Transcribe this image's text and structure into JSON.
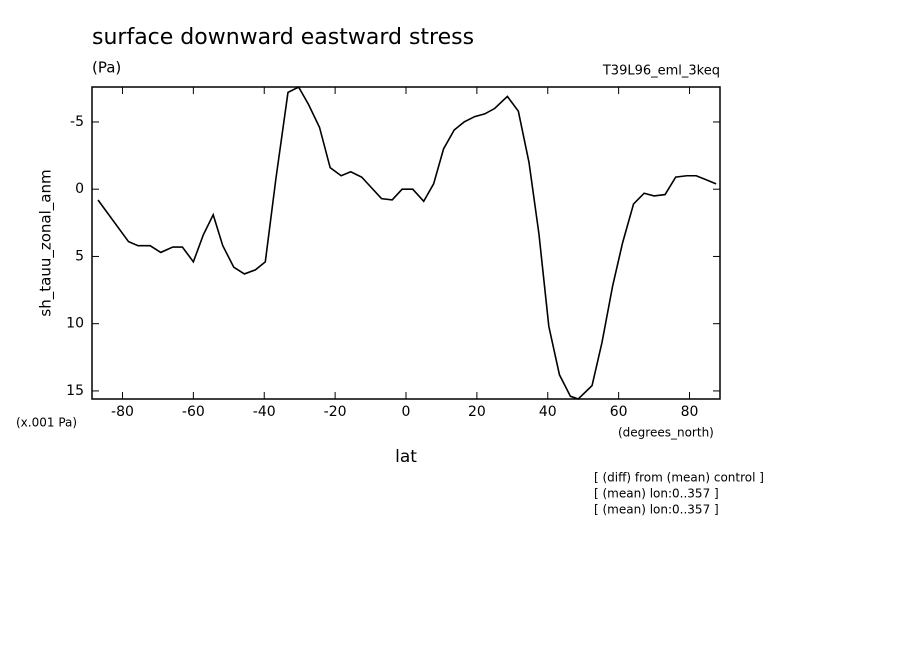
{
  "chart_data": {
    "type": "line",
    "title": "surface downward eastward stress",
    "subtitle": "(Pa)",
    "experiment": "T39L96_eml_3keq",
    "y_label": "sh_tauu_zonal_anm",
    "y_unit": "(x.001 Pa)",
    "x_unit": "(degrees_north)",
    "x_label": "lat",
    "notes": [
      "[ (diff) from (mean) control ]",
      "[ (mean) lon:0..357 ]",
      "[ (mean) lon:0..357 ]"
    ],
    "x": [
      -86.9,
      -78.3,
      -75.6,
      -72.2,
      -69.2,
      -65.8,
      -63.1,
      -60.0,
      -57.2,
      -54.4,
      -51.7,
      -48.6,
      -45.6,
      -42.5,
      -39.7,
      -36.7,
      -33.3,
      -30.3,
      -27.5,
      -24.4,
      -21.4,
      -18.3,
      -15.6,
      -12.5,
      -9.7,
      -6.9,
      -3.9,
      -1.1,
      1.9,
      5.0,
      7.8,
      10.6,
      13.6,
      16.4,
      19.4,
      22.2,
      25.0,
      28.6,
      31.7,
      34.7,
      37.5,
      40.3,
      43.3,
      46.4,
      48.6,
      52.5,
      55.3,
      58.3,
      61.1,
      64.2,
      67.2,
      70.0,
      73.1,
      76.1,
      79.2,
      81.9,
      84.7,
      87.5
    ],
    "series": [
      {
        "color": "#000000",
        "values": [
          0.8,
          3.9,
          4.2,
          4.2,
          4.7,
          4.3,
          4.3,
          5.4,
          3.4,
          1.9,
          4.2,
          5.8,
          6.3,
          6.0,
          5.4,
          -0.8,
          -7.2,
          -7.6,
          -6.3,
          -4.6,
          -1.6,
          -1.0,
          -1.3,
          -0.9,
          -0.1,
          0.7,
          0.8,
          0.0,
          0.0,
          0.9,
          -0.4,
          -3.0,
          -4.4,
          -5.0,
          -5.4,
          -5.6,
          -6.0,
          -6.9,
          -5.8,
          -2.0,
          3.3,
          10.2,
          13.8,
          15.4,
          15.6,
          14.6,
          11.4,
          7.2,
          4.0,
          1.1,
          0.3,
          0.5,
          0.4,
          -0.9,
          -1.0,
          -1.0,
          -0.7,
          -0.4
        ]
      }
    ],
    "xlim": [
      -88.6,
      88.6
    ],
    "xticks": [
      -80,
      -60,
      -40,
      -20,
      0,
      20,
      40,
      60,
      80
    ],
    "ylim": [
      15.6,
      -7.6
    ],
    "yticks": [
      -5,
      0,
      5,
      10,
      15
    ]
  }
}
